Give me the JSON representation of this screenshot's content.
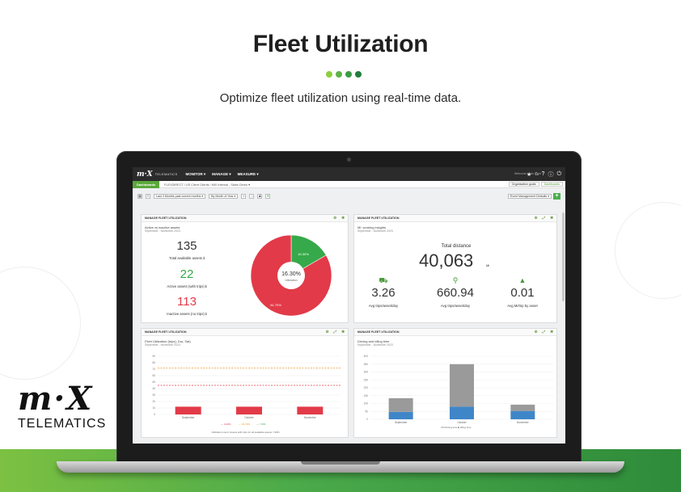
{
  "hero": {
    "title": "Fleet Utilization",
    "subtitle": "Optimize fleet utilization using real-time data.",
    "dot_colors": [
      "#8ccf3f",
      "#5bb347",
      "#3a9b45",
      "#1f7d3a"
    ]
  },
  "brand": {
    "mark": "m·X",
    "sub": "TELEMATICS"
  },
  "app": {
    "logo": "m·X",
    "logo_sub": "TELEMATICS",
    "nav": [
      "MONITOR ▾",
      "MANAGE ▾",
      "MEASURE ▾"
    ],
    "user_line1": "Welcome",
    "user_line2": "Louis Pope",
    "dashboards_tab": "Dashboards",
    "breadcrumb": "FLEXDIRECT  /  US Client Clients  /  MiX Internal - Sales Demo  ▾",
    "org_pill": "Organisation goals",
    "dash_pill": "Dashboards",
    "period_select": "Last 3 Months past current months ▾",
    "group_select": "By Month of Year ▾",
    "event_select": "Event Management Defaults ▾",
    "plus": "+"
  },
  "widgets": {
    "head_label": "MANAGE FLEET UTILIZATION",
    "utilization": {
      "title": "Active vs inactive assets",
      "period": "September - November 2023",
      "total": "135",
      "total_label": "Total available assets ℹ",
      "active": "22",
      "active_label": "Active assets (with trips) ℹ",
      "inactive": "113",
      "inactive_label": "Inactive assets (no trips) ℹ",
      "center_value": "16.30%",
      "center_label": "Utilization",
      "slice_active_label": "16.30%",
      "slice_inactive_label": "81.70%",
      "active_color": "#36a94a",
      "inactive_color": "#e23a48"
    },
    "driving": {
      "title": "MI: working insights",
      "period": "September - November 2023",
      "total_label": "Total distance",
      "total_value": "40,063",
      "total_unit": "Mi",
      "kpis": [
        {
          "value": "3.26",
          "label": "Avg trips/asset/day",
          "icon": "car-icon"
        },
        {
          "value": "660.94",
          "label": "Avg trips/asset/day",
          "icon": "map-pin-icon"
        },
        {
          "value": "0.01",
          "label": "Avg Mi/trip by asset",
          "icon": "road-icon"
        }
      ]
    },
    "utilization_chart": {
      "title": "Fleet Utilization (trips), Dur, Sat)",
      "period": "September - November 2023",
      "footer": "Utilization count: Assets with trips for all available assets = 99%"
    },
    "idling_chart": {
      "title": "Driving and idling time",
      "period": "September - November 2023",
      "legend": "Mi Driving time  ■ Idling time"
    }
  },
  "chart_data": [
    {
      "type": "pie",
      "categories": [
        "Active",
        "Inactive"
      ],
      "values": [
        16.3,
        81.7
      ],
      "colors": [
        "#36a94a",
        "#e23a48"
      ]
    },
    {
      "type": "bar",
      "categories": [
        "September",
        "October",
        "November"
      ],
      "series": [
        {
          "values": [
            12,
            12,
            12
          ]
        }
      ],
      "ylim": [
        0,
        90
      ],
      "yticks": [
        0,
        10,
        20,
        30,
        40,
        50,
        60,
        70,
        80,
        90
      ],
      "reference_lines": [
        {
          "value": 72,
          "color": "#f0a030"
        },
        {
          "value": 45,
          "color": "#e23a48"
        }
      ],
      "legend": [
        "— 0-29%",
        "— 30-59%",
        "— >70%"
      ],
      "grid": true
    },
    {
      "type": "bar",
      "stacked": true,
      "categories": [
        "September",
        "October",
        "November"
      ],
      "series": [
        {
          "name": "Driving time",
          "values": [
            47,
            80,
            53
          ],
          "color": "#3f86c9"
        },
        {
          "name": "Idling time",
          "values": [
            87,
            270,
            40
          ],
          "color": "#9a9a9a"
        }
      ],
      "ylim": [
        0,
        400
      ],
      "yticks": [
        0,
        50,
        100,
        150,
        200,
        250,
        300,
        350,
        400
      ],
      "grid": true
    }
  ]
}
